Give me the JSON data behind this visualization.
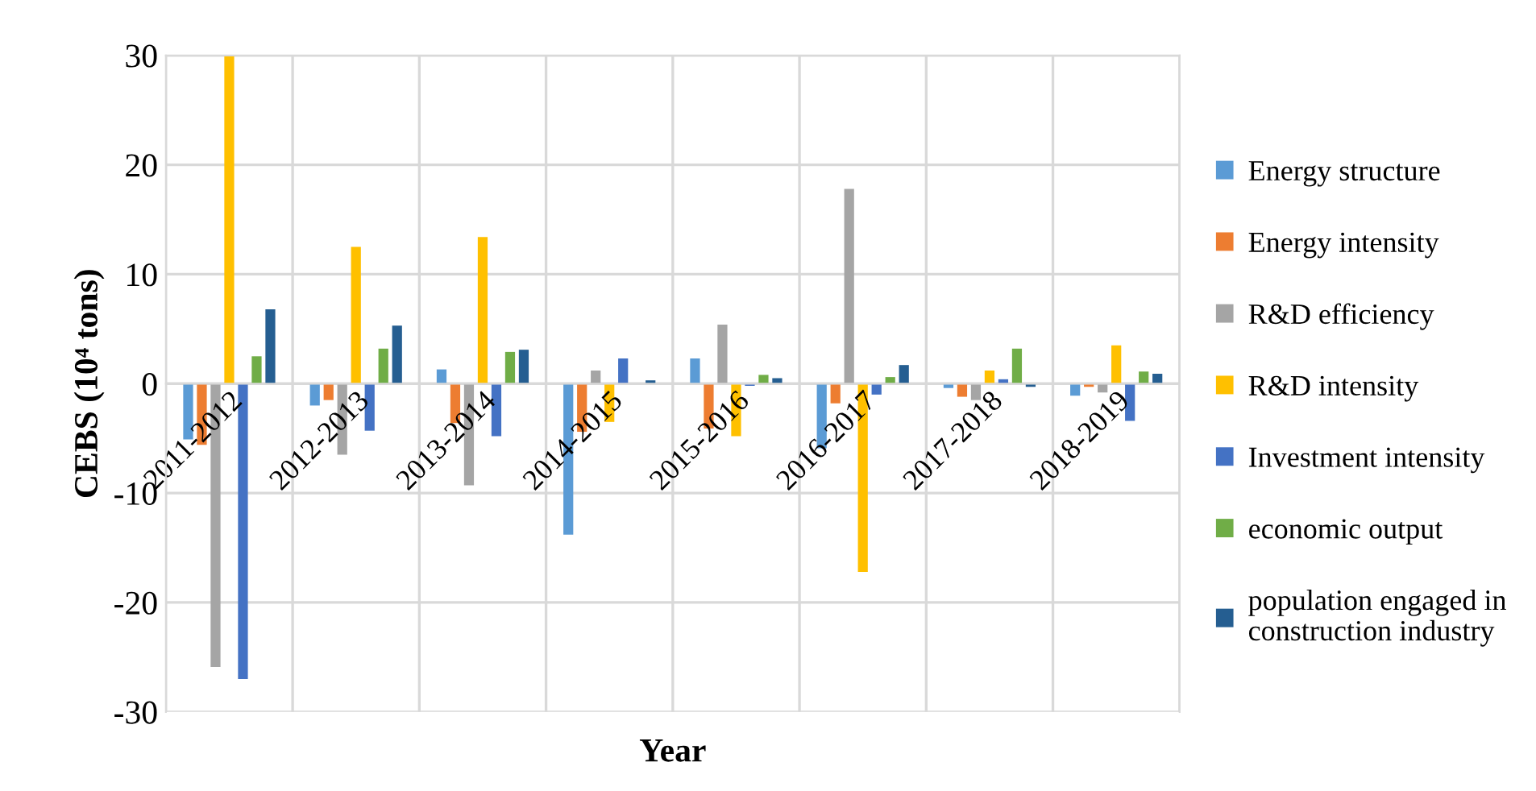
{
  "chart_data": {
    "type": "bar",
    "xlabel": "Year",
    "ylabel": "CEBS (10⁴ tons)",
    "categories": [
      "2011-2012",
      "2012-2013",
      "2013-2014",
      "2014-2015",
      "2015-2016",
      "2016-2017",
      "2017-2018",
      "2018-2019"
    ],
    "series": [
      {
        "name": "Energy structure",
        "color": "#5b9bd5",
        "values": [
          -5.1,
          -2.0,
          1.3,
          -13.8,
          2.3,
          -5.9,
          -0.4,
          -1.1
        ]
      },
      {
        "name": "Energy intensity",
        "color": "#ed7d31",
        "values": [
          -5.6,
          -1.5,
          -3.6,
          -4.4,
          -4.1,
          -1.8,
          -1.2,
          -0.3
        ]
      },
      {
        "name": "R&D efficiency",
        "color": "#a5a5a5",
        "values": [
          -25.9,
          -6.5,
          -9.3,
          1.2,
          5.4,
          17.8,
          -1.5,
          -0.8
        ]
      },
      {
        "name": "R&D intensity",
        "color": "#ffc000",
        "values": [
          29.9,
          12.5,
          13.4,
          -3.5,
          -4.8,
          -17.2,
          1.2,
          3.5
        ]
      },
      {
        "name": "Investment intensity",
        "color": "#4472c4",
        "values": [
          -27.0,
          -4.3,
          -4.8,
          2.3,
          -0.2,
          -1.0,
          0.4,
          -3.4
        ]
      },
      {
        "name": "economic output",
        "color": "#70ad47",
        "values": [
          2.5,
          3.2,
          2.9,
          0.0,
          0.8,
          0.6,
          3.2,
          1.1
        ]
      },
      {
        "name": "population engaged in\nconstruction industry",
        "color": "#255e91",
        "values": [
          6.8,
          5.3,
          3.1,
          0.3,
          0.5,
          1.7,
          -0.3,
          0.9
        ]
      }
    ],
    "ylim": [
      -30,
      30
    ],
    "yticks": [
      -30,
      -20,
      -10,
      0,
      10,
      20,
      30
    ],
    "grid": true,
    "legend": "right"
  }
}
